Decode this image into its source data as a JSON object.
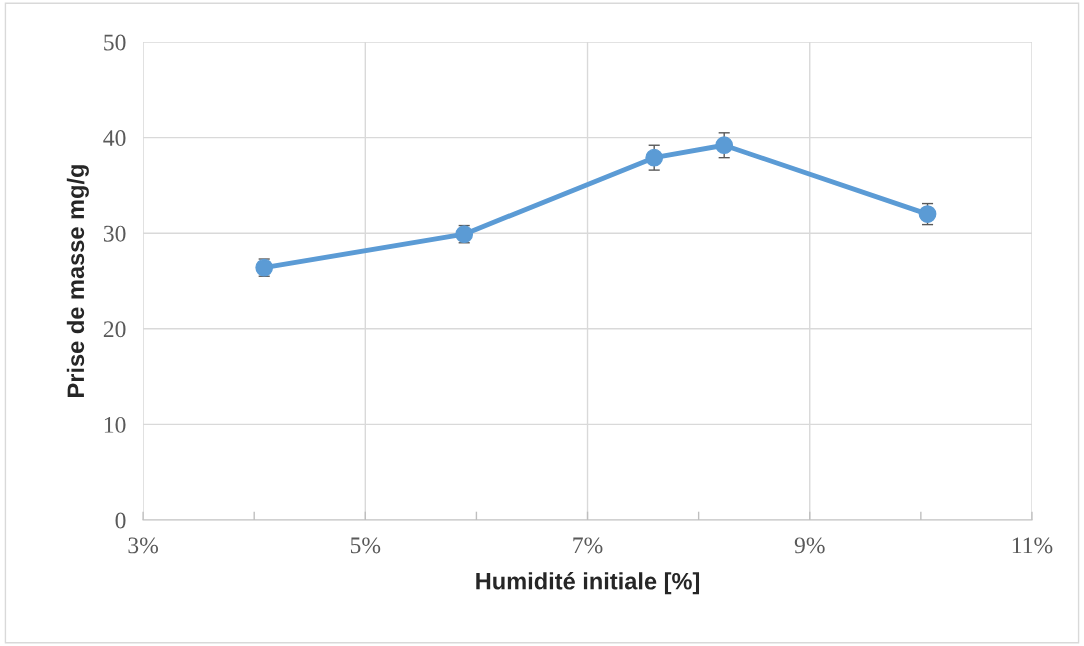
{
  "chart_data": {
    "type": "line",
    "xlabel": "Humidité initiale [%]",
    "ylabel": "Prise de masse mg/g",
    "x": [
      4.09,
      5.89,
      7.6,
      8.23,
      10.06
    ],
    "series": [
      {
        "color": "#5b9bd5",
        "values": [
          26.4,
          29.9,
          37.9,
          39.2,
          32.0
        ],
        "errors": [
          0.9,
          0.9,
          1.3,
          1.3,
          1.1
        ]
      }
    ],
    "xlim": [
      3,
      11
    ],
    "xticks": [
      {
        "value": 3,
        "label": "3%"
      },
      {
        "value": 4,
        "label": null
      },
      {
        "value": 5,
        "label": "5%"
      },
      {
        "value": 6,
        "label": null
      },
      {
        "value": 7,
        "label": "7%"
      },
      {
        "value": 8,
        "label": null
      },
      {
        "value": 9,
        "label": "9%"
      },
      {
        "value": 10,
        "label": null
      },
      {
        "value": 11,
        "label": "11%"
      }
    ],
    "ylim": [
      0,
      50
    ],
    "yticks": [
      0,
      10,
      20,
      30,
      40,
      50
    ],
    "grid": true,
    "marker": "circle",
    "line_style": "solid"
  }
}
